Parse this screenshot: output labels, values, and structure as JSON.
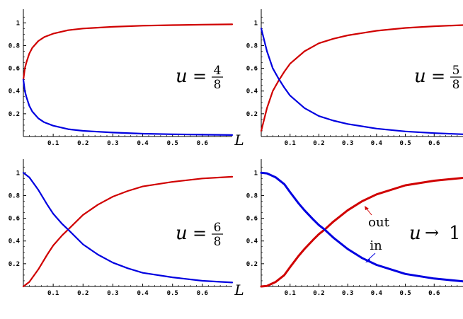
{
  "chart_data": [
    {
      "type": "line",
      "annotation": {
        "var": "u",
        "op": "=",
        "num": "4",
        "den": "8"
      },
      "xlim": [
        0,
        0.7
      ],
      "ylim": [
        0,
        1.12
      ],
      "x_ticks": [
        "0.1",
        "0.2",
        "0.3",
        "0.4",
        "0.5",
        "0.6"
      ],
      "y_ticks": [
        "0.2",
        "0.4",
        "0.6",
        "0.8",
        "1"
      ],
      "xlabel": "",
      "series": [
        {
          "color": "#d00000",
          "x": [
            0,
            0.005,
            0.01,
            0.02,
            0.03,
            0.05,
            0.07,
            0.1,
            0.15,
            0.2,
            0.3,
            0.4,
            0.5,
            0.6,
            0.7
          ],
          "y": [
            0.5,
            0.6,
            0.65,
            0.73,
            0.78,
            0.84,
            0.875,
            0.905,
            0.935,
            0.95,
            0.965,
            0.975,
            0.98,
            0.984,
            0.987
          ]
        },
        {
          "color": "#0000e0",
          "x": [
            0,
            0.005,
            0.01,
            0.02,
            0.03,
            0.05,
            0.07,
            0.1,
            0.15,
            0.2,
            0.3,
            0.4,
            0.5,
            0.6,
            0.7
          ],
          "y": [
            0.5,
            0.4,
            0.35,
            0.27,
            0.22,
            0.16,
            0.125,
            0.095,
            0.065,
            0.05,
            0.035,
            0.025,
            0.02,
            0.016,
            0.013
          ]
        }
      ]
    },
    {
      "type": "line",
      "annotation": {
        "var": "u",
        "op": "=",
        "num": "5",
        "den": "8"
      },
      "xlim": [
        0,
        0.7
      ],
      "ylim": [
        0,
        1.12
      ],
      "x_ticks": [
        "0.1",
        "0.2",
        "0.3",
        "0.4",
        "0.5",
        "0.6"
      ],
      "y_ticks": [
        "0.2",
        "0.4",
        "0.6",
        "0.8",
        "1"
      ],
      "xlabel": "L",
      "series": [
        {
          "color": "#d00000",
          "x": [
            0,
            0.02,
            0.04,
            0.06,
            0.08,
            0.1,
            0.15,
            0.2,
            0.25,
            0.3,
            0.4,
            0.5,
            0.6,
            0.7
          ],
          "y": [
            0.05,
            0.25,
            0.4,
            0.49,
            0.57,
            0.64,
            0.75,
            0.82,
            0.86,
            0.89,
            0.93,
            0.955,
            0.97,
            0.98
          ]
        },
        {
          "color": "#0000e0",
          "x": [
            0,
            0.02,
            0.04,
            0.06,
            0.08,
            0.1,
            0.15,
            0.2,
            0.25,
            0.3,
            0.4,
            0.5,
            0.6,
            0.7
          ],
          "y": [
            0.95,
            0.75,
            0.6,
            0.51,
            0.43,
            0.36,
            0.25,
            0.18,
            0.14,
            0.11,
            0.07,
            0.045,
            0.03,
            0.02
          ]
        }
      ]
    },
    {
      "type": "line",
      "annotation": {
        "var": "u",
        "op": "=",
        "num": "6",
        "den": "8"
      },
      "xlim": [
        0,
        0.7
      ],
      "ylim": [
        0,
        1.12
      ],
      "x_ticks": [
        "0.1",
        "0.2",
        "0.3",
        "0.4",
        "0.5",
        "0.6"
      ],
      "y_ticks": [
        "0.2",
        "0.4",
        "0.6",
        "0.8",
        "1"
      ],
      "xlabel": "",
      "series": [
        {
          "color": "#d00000",
          "x": [
            0,
            0.02,
            0.05,
            0.08,
            0.1,
            0.13,
            0.15,
            0.2,
            0.25,
            0.3,
            0.35,
            0.4,
            0.5,
            0.6,
            0.7
          ],
          "y": [
            0.0,
            0.04,
            0.15,
            0.28,
            0.36,
            0.45,
            0.5,
            0.63,
            0.72,
            0.79,
            0.84,
            0.88,
            0.92,
            0.95,
            0.965
          ]
        },
        {
          "color": "#0000e0",
          "x": [
            0,
            0.02,
            0.05,
            0.08,
            0.1,
            0.13,
            0.15,
            0.2,
            0.25,
            0.3,
            0.35,
            0.4,
            0.5,
            0.6,
            0.7
          ],
          "y": [
            1.0,
            0.96,
            0.85,
            0.72,
            0.64,
            0.55,
            0.5,
            0.37,
            0.28,
            0.21,
            0.16,
            0.12,
            0.08,
            0.05,
            0.035
          ]
        }
      ]
    },
    {
      "type": "line",
      "annotation": {
        "var": "u",
        "op": "→",
        "value": "1"
      },
      "xlim": [
        0,
        0.7
      ],
      "ylim": [
        0,
        1.12
      ],
      "x_ticks": [
        "0.1",
        "0.2",
        "0.3",
        "0.4",
        "0.5",
        "0.6"
      ],
      "y_ticks": [
        "0.2",
        "0.4",
        "0.6",
        "0.8",
        "1"
      ],
      "xlabel": "L",
      "labels": {
        "out": "out",
        "in": "in"
      },
      "series": [
        {
          "color": "#d00000",
          "name": "out",
          "x": [
            0,
            0.02,
            0.05,
            0.08,
            0.1,
            0.13,
            0.15,
            0.18,
            0.2,
            0.22,
            0.25,
            0.3,
            0.35,
            0.4,
            0.5,
            0.6,
            0.7
          ],
          "y": [
            0.0,
            0.005,
            0.04,
            0.1,
            0.17,
            0.27,
            0.33,
            0.41,
            0.46,
            0.5,
            0.57,
            0.67,
            0.75,
            0.81,
            0.89,
            0.93,
            0.955
          ]
        },
        {
          "color": "#0000e0",
          "name": "in",
          "x": [
            0,
            0.02,
            0.05,
            0.08,
            0.1,
            0.13,
            0.15,
            0.18,
            0.2,
            0.22,
            0.25,
            0.3,
            0.35,
            0.4,
            0.5,
            0.6,
            0.7
          ],
          "y": [
            1.0,
            0.995,
            0.96,
            0.9,
            0.83,
            0.73,
            0.67,
            0.59,
            0.54,
            0.5,
            0.43,
            0.33,
            0.25,
            0.19,
            0.11,
            0.07,
            0.045
          ]
        }
      ]
    }
  ]
}
